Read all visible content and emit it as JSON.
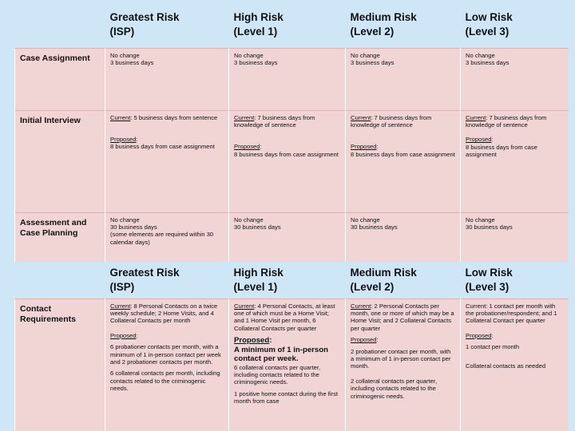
{
  "header1": {
    "col1": [
      "Greatest Risk",
      "(ISP)"
    ],
    "col2": [
      "High Risk",
      "(Level 1)"
    ],
    "col3": [
      "Medium Risk",
      "(Level 2)"
    ],
    "col4": [
      "Low Risk",
      "(Level 3)"
    ]
  },
  "case_assignment": {
    "label": "Case Assignment",
    "col1": [
      "No change",
      "3 business days"
    ],
    "col2": [
      "No change",
      "3 business days"
    ],
    "col3": [
      "No change",
      "3 business days"
    ],
    "col4": [
      "No change",
      "3 business days"
    ]
  },
  "initial_interview": {
    "label": "Initial Interview",
    "current_label": "Current",
    "proposed_label": "Proposed",
    "col1_current": ": 5 business days from sentence",
    "col1_proposed": "8 business days from case assignment",
    "col2_current": ": 7 business days from knowledge of sentence",
    "col2_proposed": "8 business days from case assignment",
    "col3_current": ": 7 business days from knowledge of sentence",
    "col3_proposed": "8 business days from case assignment",
    "col4_current": ": 7 business days from knowledge of sentence",
    "col4_proposed": "8 business days from case assignment"
  },
  "assessment": {
    "label": "Assessment and Case Planning",
    "col1": [
      "No change",
      "30 business days",
      "(some elements are required within 30 calendar days)"
    ],
    "col2": [
      "No change",
      "30 business days"
    ],
    "col3": [
      "No change",
      "30 business days"
    ],
    "col4": [
      "No change",
      "30 business days"
    ]
  },
  "header2": {
    "col1": [
      "Greatest Risk",
      "(ISP)"
    ],
    "col2": [
      "High Risk",
      "(Level 1)"
    ],
    "col3": [
      "Medium Risk",
      "(Level 2)"
    ],
    "col4": [
      "Low Risk",
      "(Level 3)"
    ]
  },
  "contact": {
    "label": "Contact Requirements",
    "current_label": "Current",
    "proposed_label": "Proposed",
    "col1_current": ": 8 Personal Contacts on a twice weekly schedule; 2 Home Visits, and 4 Collateral Contacts per month",
    "col1_p1": "6 probationer contacts per month, with a minimum of 1 in-person contact per week and 2 probationer contacts per month.",
    "col1_p2": "6 collateral contacts per month, including contacts related to the criminogenic needs.",
    "col2_current": ": 4 Personal Contacts, at least one of which must be a Home Visit; and 1 Home Visit per month, 6 Collateral Contacts per quarter",
    "col2_proposed_head": ":",
    "col2_big": "A minimum of 1 in-person contact per week.",
    "col2_p1": "6 collateral contacts per quarter, including contacts related to the criminogenic needs.",
    "col2_p2": "1 positive home contact during the first month from case",
    "col3_current": ": 2 Personal Contacts per month, one or more of which may be a Home Visit; and 2 Collateral Contacts per quarter",
    "col3_p1": "2 probationer contact per month, with a minimum of 1 in-person contact per month.",
    "col3_p2": "2 collateral contacts per quarter, including contacts related to the criminogenic needs.",
    "col4_current": "Current: 1 contact per month with the probationer/respondent; and 1 Collateral Contact per quarter",
    "col4_p1": "1 contact per month",
    "col4_p2": "Collateral contacts as needed"
  }
}
